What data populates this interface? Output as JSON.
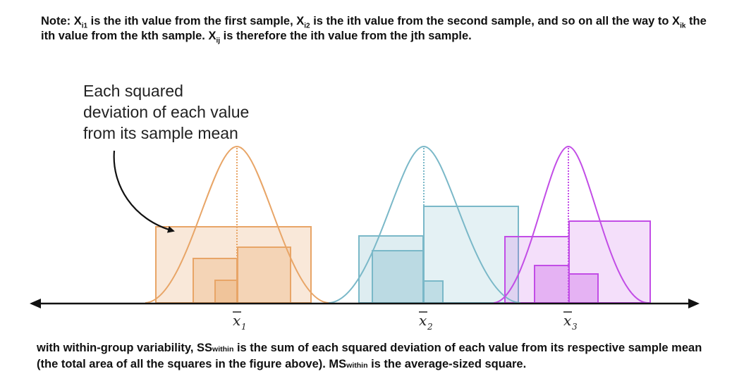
{
  "note": {
    "text_1": "Note: X",
    "sub_1": "i1",
    "text_2": " is the ith value from the first sample, X",
    "sub_2": "i2",
    "text_3": " is the ith value from the second sample, and so on all  the way to X",
    "sub_3": "ik",
    "text_4": " the ith value from the kth sample. X",
    "sub_4": "ij",
    "text_5": " is therefore the ith value from the jth sample."
  },
  "annotation": {
    "line_1": "Each squared",
    "line_2": "deviation of each value",
    "line_3": "from its sample mean"
  },
  "mean_labels": [
    {
      "letter": "x",
      "sub": "1"
    },
    {
      "letter": "x",
      "sub": "2"
    },
    {
      "letter": "x",
      "sub": "3"
    }
  ],
  "colors": {
    "sample_1": "#e8a567",
    "sample_2": "#7ab8c8",
    "sample_3": "#c24de6",
    "axis": "#111111"
  },
  "caption": {
    "text_1": "with within-group variability, SS",
    "small_1": "within",
    "text_2": " is the sum of each squared deviation of each value from its respective sample mean (the total area of all the squares in the figure above). MS",
    "small_2": "within",
    "text_3": " is the average-sized square."
  }
}
